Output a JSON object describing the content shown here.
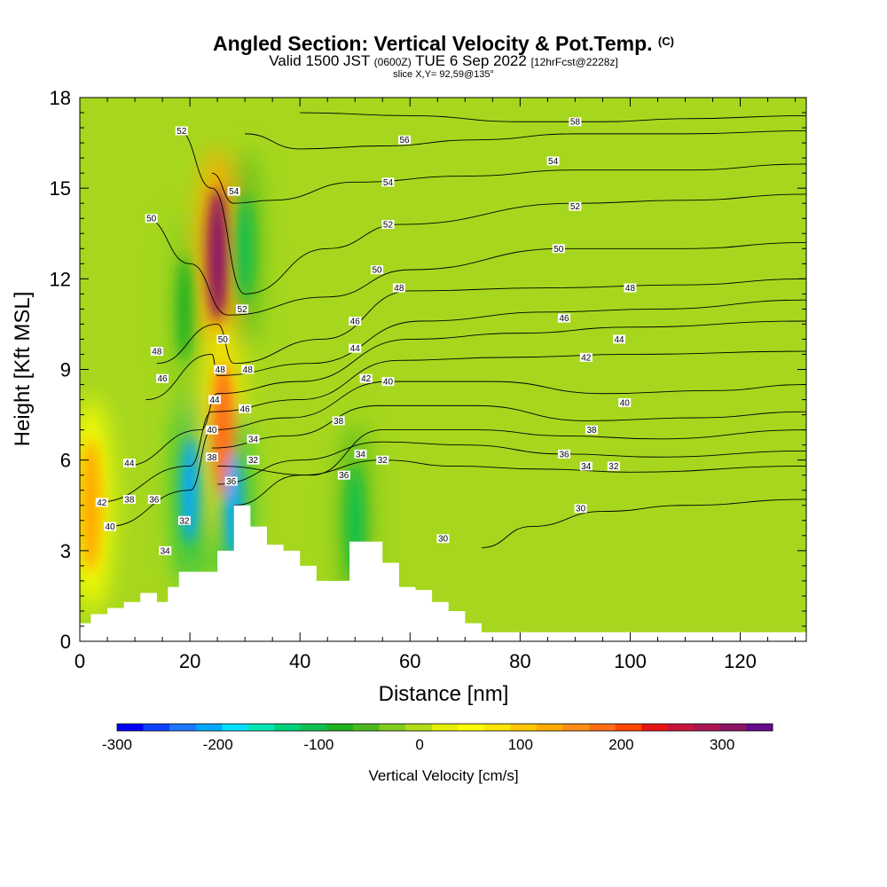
{
  "header": {
    "title": "Angled Section: Vertical Velocity & Pot.Temp.",
    "copyright": "(C)",
    "valid_prefix": "Valid 1500 JST",
    "valid_utc": "(0600Z)",
    "valid_date": "TUE 6 Sep 2022",
    "forecast": "[12hrFcst@2228z]",
    "slice": "slice X,Y= 92,59@135°"
  },
  "chart_data": {
    "type": "heatmap",
    "title": "Angled Section: Vertical Velocity & Pot.Temp.",
    "xlabel": "Distance [nm]",
    "ylabel": "Height [Kft MSL]",
    "xlim": [
      0,
      132
    ],
    "ylim": [
      0,
      18
    ],
    "x_ticks": [
      "0",
      "20",
      "40",
      "60",
      "80",
      "100",
      "120"
    ],
    "y_ticks": [
      "0",
      "3",
      "6",
      "9",
      "12",
      "15",
      "18"
    ],
    "colorbar": {
      "label": "Vertical Velocity [cm/s]",
      "range": [
        -300,
        350
      ],
      "tick_labels": [
        "-300",
        "-200",
        "-100",
        "0",
        "100",
        "200",
        "300"
      ],
      "colors": [
        "#0000ff",
        "#1040ff",
        "#1e78ff",
        "#00a8ff",
        "#00e0ff",
        "#00e6b4",
        "#00d278",
        "#10c050",
        "#22b222",
        "#4cba1e",
        "#82cc1e",
        "#b4dc14",
        "#e6f000",
        "#ffff00",
        "#ffe600",
        "#ffc800",
        "#ffaa00",
        "#ff8c14",
        "#ff6e14",
        "#ff4600",
        "#e61414",
        "#c8143c",
        "#aa1450",
        "#8c1464",
        "#640a8c"
      ]
    },
    "updraft_cores": [
      {
        "x_nm": 25,
        "z_kft": 12.8,
        "w_cms": 300
      },
      {
        "x_nm": 2,
        "z_kft": 4.5,
        "w_cms": 120
      },
      {
        "x_nm": 26,
        "z_kft": 7,
        "w_cms": 180
      }
    ],
    "downdraft_cores": [
      {
        "x_nm": 20,
        "z_kft": 5,
        "w_cms": -220
      },
      {
        "x_nm": 28,
        "z_kft": 4.5,
        "w_cms": -200
      },
      {
        "x_nm": 19,
        "z_kft": 11,
        "w_cms": -80
      },
      {
        "x_nm": 30,
        "z_kft": 13,
        "w_cms": -100
      },
      {
        "x_nm": 50,
        "z_kft": 4,
        "w_cms": -100
      }
    ],
    "terrain": {
      "x_nm": [
        0,
        2,
        5,
        8,
        11,
        14,
        16,
        18,
        20,
        23,
        25,
        28,
        31,
        34,
        37,
        40,
        43,
        46,
        49,
        52,
        55,
        58,
        61,
        64,
        67,
        70,
        73
      ],
      "height_kft": [
        0.6,
        0.9,
        1.1,
        1.3,
        1.6,
        1.3,
        1.8,
        2.3,
        2.3,
        2.3,
        3.0,
        4.5,
        3.8,
        3.2,
        3.0,
        2.5,
        2.0,
        2.0,
        3.3,
        3.3,
        2.6,
        1.8,
        1.7,
        1.3,
        1.0,
        0.6,
        0.3
      ],
      "min_plotted_kft": 0.3
    },
    "theta_contours": [
      {
        "label": "30",
        "x_nm": [
          73,
          82,
          95,
          110,
          132
        ],
        "z_kft": [
          3.1,
          3.8,
          4.3,
          4.5,
          4.7
        ]
      },
      {
        "label": "32",
        "x_nm": [
          28,
          40,
          55,
          68,
          84,
          100,
          132
        ],
        "z_kft": [
          4.5,
          5.5,
          6.0,
          5.8,
          5.7,
          5.6,
          5.8
        ]
      },
      {
        "label": "34",
        "x_nm": [
          25,
          40,
          55,
          70,
          88,
          105,
          132
        ],
        "z_kft": [
          5.2,
          6.0,
          6.6,
          6.5,
          6.2,
          6.1,
          6.3
        ]
      },
      {
        "label": "36",
        "x_nm": [
          25,
          42,
          55,
          72,
          88,
          105,
          132
        ],
        "z_kft": [
          5.8,
          5.5,
          7.0,
          7.0,
          6.8,
          6.7,
          7.0
        ]
      },
      {
        "label": "38",
        "x_nm": [
          24,
          38,
          54,
          72,
          92,
          112,
          132
        ],
        "z_kft": [
          6.4,
          6.8,
          7.8,
          7.8,
          7.3,
          7.4,
          7.6
        ]
      },
      {
        "label": "40",
        "x_nm": [
          5,
          20,
          24,
          38,
          56,
          75,
          95,
          115,
          132
        ],
        "z_kft": [
          3.8,
          5.0,
          7.0,
          7.4,
          8.6,
          8.6,
          8.2,
          8.3,
          8.5
        ]
      },
      {
        "label": "42",
        "x_nm": [
          3,
          20,
          24,
          40,
          58,
          78,
          100,
          132
        ],
        "z_kft": [
          4.6,
          5.8,
          7.6,
          8.0,
          9.3,
          9.4,
          9.5,
          9.6
        ]
      },
      {
        "label": "44",
        "x_nm": [
          8,
          22,
          25,
          40,
          60,
          80,
          100,
          132
        ],
        "z_kft": [
          5.8,
          7.0,
          8.2,
          8.6,
          10.0,
          10.2,
          10.4,
          10.6
        ]
      },
      {
        "label": "46",
        "x_nm": [
          12,
          24,
          25,
          42,
          62,
          85,
          105,
          132
        ],
        "z_kft": [
          8.0,
          9.5,
          8.8,
          9.2,
          10.6,
          10.9,
          11.0,
          11.3
        ]
      },
      {
        "label": "48",
        "x_nm": [
          14,
          25,
          28,
          44,
          60,
          85,
          110,
          132
        ],
        "z_kft": [
          9.2,
          10.5,
          9.2,
          10.0,
          11.6,
          11.7,
          11.8,
          12.0
        ]
      },
      {
        "label": "50",
        "x_nm": [
          12,
          20,
          27,
          45,
          60,
          88,
          110,
          132
        ],
        "z_kft": [
          14.0,
          12.5,
          10.8,
          11.4,
          12.3,
          13.0,
          13.0,
          13.2
        ]
      },
      {
        "label": "52",
        "x_nm": [
          18,
          24,
          30,
          45,
          58,
          90,
          110,
          132
        ],
        "z_kft": [
          16.9,
          15.0,
          11.5,
          13.0,
          13.8,
          14.5,
          14.6,
          14.8
        ]
      },
      {
        "label": "54",
        "x_nm": [
          24,
          28,
          35,
          50,
          70,
          90,
          110,
          132
        ],
        "z_kft": [
          15.5,
          14.5,
          14.6,
          15.2,
          15.4,
          15.6,
          15.6,
          15.8
        ]
      },
      {
        "label": "56",
        "x_nm": [
          30,
          40,
          55,
          72,
          90,
          110,
          132
        ],
        "z_kft": [
          16.8,
          16.3,
          16.4,
          16.6,
          16.8,
          16.8,
          16.9
        ]
      },
      {
        "label": "58",
        "x_nm": [
          40,
          60,
          80,
          95,
          110,
          132
        ],
        "z_kft": [
          17.5,
          17.4,
          17.2,
          17.2,
          17.3,
          17.4
        ]
      }
    ],
    "contour_labels": [
      {
        "text": "52",
        "x_nm": 18.5,
        "z_kft": 16.9
      },
      {
        "text": "54",
        "x_nm": 28,
        "z_kft": 14.9
      },
      {
        "text": "50",
        "x_nm": 13,
        "z_kft": 14.0
      },
      {
        "text": "56",
        "x_nm": 59,
        "z_kft": 16.6
      },
      {
        "text": "54",
        "x_nm": 56,
        "z_kft": 15.2
      },
      {
        "text": "52",
        "x_nm": 56,
        "z_kft": 13.8
      },
      {
        "text": "50",
        "x_nm": 54,
        "z_kft": 12.3
      },
      {
        "text": "48",
        "x_nm": 58,
        "z_kft": 11.7
      },
      {
        "text": "58",
        "x_nm": 90,
        "z_kft": 17.2
      },
      {
        "text": "54",
        "x_nm": 86,
        "z_kft": 15.9
      },
      {
        "text": "52",
        "x_nm": 90,
        "z_kft": 14.4
      },
      {
        "text": "50",
        "x_nm": 87,
        "z_kft": 13.0
      },
      {
        "text": "48",
        "x_nm": 100,
        "z_kft": 11.7
      },
      {
        "text": "46",
        "x_nm": 88,
        "z_kft": 10.7
      },
      {
        "text": "44",
        "x_nm": 98,
        "z_kft": 10.0
      },
      {
        "text": "42",
        "x_nm": 92,
        "z_kft": 9.4
      },
      {
        "text": "40",
        "x_nm": 99,
        "z_kft": 7.9
      },
      {
        "text": "38",
        "x_nm": 93,
        "z_kft": 7.0
      },
      {
        "text": "36",
        "x_nm": 88,
        "z_kft": 6.2
      },
      {
        "text": "34",
        "x_nm": 92,
        "z_kft": 5.8
      },
      {
        "text": "32",
        "x_nm": 97,
        "z_kft": 5.8
      },
      {
        "text": "30",
        "x_nm": 91,
        "z_kft": 4.4
      },
      {
        "text": "30",
        "x_nm": 66,
        "z_kft": 3.4
      },
      {
        "text": "32",
        "x_nm": 55,
        "z_kft": 6.0
      },
      {
        "text": "34",
        "x_nm": 51,
        "z_kft": 6.2
      },
      {
        "text": "36",
        "x_nm": 48,
        "z_kft": 5.5
      },
      {
        "text": "38",
        "x_nm": 47,
        "z_kft": 7.3
      },
      {
        "text": "40",
        "x_nm": 56,
        "z_kft": 8.6
      },
      {
        "text": "42",
        "x_nm": 52,
        "z_kft": 8.7
      },
      {
        "text": "44",
        "x_nm": 50,
        "z_kft": 9.7
      },
      {
        "text": "46",
        "x_nm": 50,
        "z_kft": 10.6
      },
      {
        "text": "52",
        "x_nm": 29.5,
        "z_kft": 11.0
      },
      {
        "text": "50",
        "x_nm": 26,
        "z_kft": 10.0
      },
      {
        "text": "48",
        "x_nm": 30.5,
        "z_kft": 9.0
      },
      {
        "text": "48",
        "x_nm": 25.5,
        "z_kft": 9.0
      },
      {
        "text": "46",
        "x_nm": 30,
        "z_kft": 7.7
      },
      {
        "text": "44",
        "x_nm": 24.5,
        "z_kft": 8.0
      },
      {
        "text": "40",
        "x_nm": 24,
        "z_kft": 7.0
      },
      {
        "text": "38",
        "x_nm": 24,
        "z_kft": 6.1
      },
      {
        "text": "36",
        "x_nm": 27.5,
        "z_kft": 5.3
      },
      {
        "text": "34",
        "x_nm": 31.5,
        "z_kft": 6.7
      },
      {
        "text": "32",
        "x_nm": 31.5,
        "z_kft": 6.0
      },
      {
        "text": "48",
        "x_nm": 14,
        "z_kft": 9.6
      },
      {
        "text": "46",
        "x_nm": 15,
        "z_kft": 8.7
      },
      {
        "text": "44",
        "x_nm": 9,
        "z_kft": 5.9
      },
      {
        "text": "42",
        "x_nm": 4,
        "z_kft": 4.6
      },
      {
        "text": "40",
        "x_nm": 5.5,
        "z_kft": 3.8
      },
      {
        "text": "38",
        "x_nm": 9,
        "z_kft": 4.7
      },
      {
        "text": "36",
        "x_nm": 13.5,
        "z_kft": 4.7
      },
      {
        "text": "34",
        "x_nm": 15.5,
        "z_kft": 3.0
      },
      {
        "text": "32",
        "x_nm": 19,
        "z_kft": 4.0
      }
    ]
  }
}
